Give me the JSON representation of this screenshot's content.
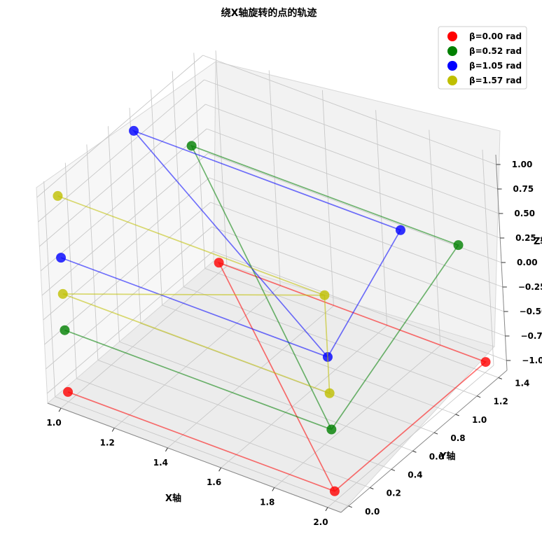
{
  "chart_data": {
    "type": "scatter",
    "projection": "3d",
    "title": "绕X轴旋转的点的轨迹",
    "xlabel": "X轴",
    "ylabel": "Y轴",
    "zlabel": "Z轴",
    "xticks": [
      "1.0",
      "1.2",
      "1.4",
      "1.6",
      "1.8",
      "2.0"
    ],
    "yticks": [
      "0.0",
      "0.2",
      "0.4",
      "0.6",
      "0.8",
      "1.0",
      "1.2",
      "1.4"
    ],
    "zticks": [
      "−1.00",
      "−0.75",
      "−0.50",
      "−0.25",
      "0.00",
      "0.25",
      "0.50",
      "0.75",
      "1.00"
    ],
    "xlim": [
      0.95,
      2.05
    ],
    "ylim": [
      -0.07,
      1.48
    ],
    "zlim": [
      -1.1,
      1.1
    ],
    "grid": true,
    "legend_position": "top-right",
    "connect_points": true,
    "series": [
      {
        "name": "β=0.00 rad",
        "color": "#ff0000",
        "points": [
          [
            1.0,
            0.0,
            -1.0
          ],
          [
            2.0,
            0.0,
            -1.0
          ],
          [
            2.0,
            1.41,
            -1.0
          ],
          [
            1.0,
            1.41,
            -1.0
          ],
          [
            2.0,
            0.0,
            -1.0
          ]
        ]
      },
      {
        "name": "β=0.52 rad",
        "color": "#008000",
        "points": [
          [
            1.0,
            0.0,
            -0.37
          ],
          [
            2.0,
            0.0,
            -0.37
          ],
          [
            2.0,
            1.22,
            0.37
          ],
          [
            1.0,
            1.22,
            0.37
          ],
          [
            2.0,
            0.0,
            -0.37
          ]
        ]
      },
      {
        "name": "β=1.05 rad",
        "color": "#0000ff",
        "points": [
          [
            1.0,
            0.0,
            0.37
          ],
          [
            2.0,
            0.0,
            0.37
          ],
          [
            2.0,
            0.71,
            1.0
          ],
          [
            1.0,
            0.71,
            1.0
          ],
          [
            2.0,
            0.0,
            0.37
          ]
        ]
      },
      {
        "name": "β=1.57 rad",
        "color": "#bfbf00",
        "points": [
          [
            1.0,
            0.0,
            1.0
          ],
          [
            2.0,
            0.0,
            1.0
          ],
          [
            2.0,
            0.0,
            0.0
          ],
          [
            1.0,
            0.0,
            0.0
          ],
          [
            2.0,
            0.0,
            1.0
          ]
        ]
      }
    ]
  }
}
